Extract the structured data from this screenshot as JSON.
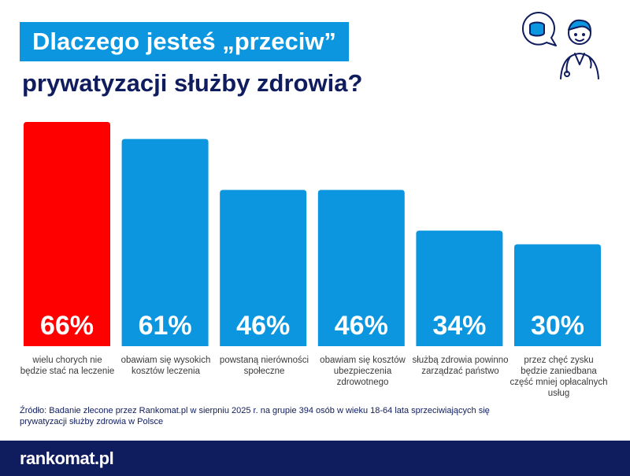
{
  "title": {
    "line1": "Dlaczego jesteś „przeciw”",
    "line2": "prywatyzacji służby zdrowia?"
  },
  "chart_data": {
    "type": "bar",
    "categories": [
      "wielu chorych nie będzie stać na leczenie",
      "obawiam się wysokich kosztów leczenia",
      "powstaną nierówności społeczne",
      "obawiam się kosztów ubezpieczenia zdrowotnego",
      "służbą zdrowia powinno zarządzać państwo",
      "przez chęć zysku będzie zaniedbana część mniej opłacalnych usług"
    ],
    "values": [
      66,
      61,
      46,
      46,
      34,
      30
    ],
    "value_labels": [
      "66%",
      "61%",
      "46%",
      "46%",
      "34%",
      "30%"
    ],
    "unit": "%",
    "ylim": [
      0,
      66
    ],
    "grid": false,
    "colors": [
      "#fe0000",
      "#0c96df",
      "#0c96df",
      "#0c96df",
      "#0c96df",
      "#0c96df"
    ]
  },
  "source": "Źródło: Badanie zlecone przez Rankomat.pl w sierpniu 2025 r. na grupie 394 osób w wieku 18-64 lata sprzeciwiających się prywatyzacji służby zdrowia w Polsce",
  "brand": {
    "logo_text": "rankomat.pl",
    "navy": "#0f1c5e",
    "blue": "#0c96df",
    "red": "#fe0000"
  },
  "icons": {
    "illustration": "doctor-with-coins-icon"
  }
}
